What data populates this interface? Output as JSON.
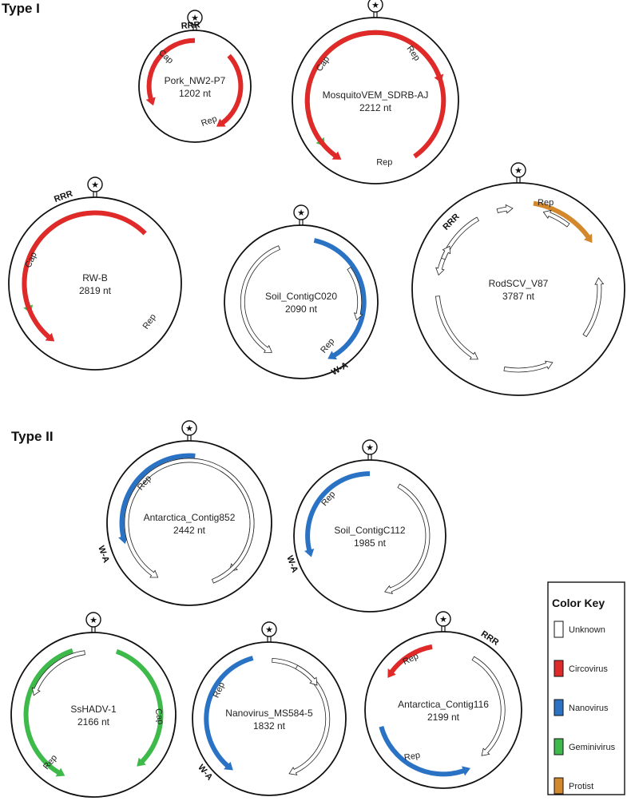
{
  "colors": {
    "Unknown": "#ffffff",
    "Circovirus": "#e02a2a",
    "Nanovirus": "#2a73c4",
    "Geminivirus": "#3dba4a",
    "Protist": "#d4882c"
  },
  "sections": [
    {
      "title": "Type I"
    },
    {
      "title": "Type II"
    }
  ],
  "genomes": [
    {
      "name": "Pork_NW2-P7",
      "length": "1202 nt",
      "arrows": [
        {
          "cls": "Circovirus",
          "a0": 0,
          "a1": -115
        },
        {
          "cls": "Circovirus",
          "a0": 48,
          "a1": 152
        }
      ],
      "labels": [
        {
          "text": "Cap",
          "angle": -48,
          "r": 0.74,
          "rot": 42
        },
        {
          "text": "Rep",
          "angle": 158,
          "r": 0.72,
          "rot": -20
        }
      ],
      "motifs": [
        {
          "text": "RRR",
          "angle": -4,
          "r": 1.1
        }
      ]
    },
    {
      "name": "MosquitoVEM_SDRB-AJ",
      "length": "2212 nt",
      "arrows": [
        {
          "cls": "Geminivirus",
          "a0": 55,
          "a1": -132
        },
        {
          "cls": "Circovirus",
          "a0": 12,
          "a1": 75
        },
        {
          "cls": "Circovirus",
          "a0": 145,
          "a1": -150
        }
      ],
      "labels": [
        {
          "text": "Cap",
          "angle": -55,
          "r": 0.74,
          "rot": -55
        },
        {
          "text": "Rep",
          "angle": 38,
          "r": 0.7,
          "rot": 55
        },
        {
          "text": "Rep",
          "angle": 172,
          "r": 0.78,
          "rot": 0
        }
      ],
      "motifs": []
    },
    {
      "name": "RW-B",
      "length": "2819 nt",
      "arrows": [
        {
          "cls": "Geminivirus",
          "a0": -8,
          "a1": -115
        },
        {
          "cls": "Circovirus",
          "a0": 45,
          "a1": -145
        }
      ],
      "labels": [
        {
          "text": "Cap",
          "angle": -70,
          "r": 0.76,
          "rot": -65
        },
        {
          "text": "Rep",
          "angle": 125,
          "r": 0.8,
          "rot": -55
        }
      ],
      "motifs": [
        {
          "text": "RRR",
          "angle": -20,
          "r": 1.08
        }
      ]
    },
    {
      "name": "Soil_ContigC020",
      "length": "2090 nt",
      "arrows": [
        {
          "cls": "Nanovirus",
          "a0": 12,
          "a1": 155
        },
        {
          "cls": "Unknown",
          "a0": -22,
          "a1": -150
        },
        {
          "cls": "Unknown",
          "a0": 55,
          "a1": 108
        }
      ],
      "labels": [
        {
          "text": "Rep",
          "angle": 148,
          "r": 0.7,
          "rot": -50
        }
      ],
      "motifs": [
        {
          "text": "W-A",
          "angle": 150,
          "r": 1.0
        }
      ]
    },
    {
      "name": "RodSCV_V87",
      "length": "3787 nt",
      "arrows": [
        {
          "cls": "Protist",
          "a0": 10,
          "a1": 58
        },
        {
          "cls": "Unknown",
          "a0": -30,
          "a1": -80
        },
        {
          "cls": "Unknown",
          "a0": -15,
          "a1": -4
        },
        {
          "cls": "Unknown",
          "a0": 38,
          "a1": 18
        },
        {
          "cls": "Unknown",
          "a0": -68,
          "a1": -58
        },
        {
          "cls": "Unknown",
          "a0": -95,
          "a1": -150
        },
        {
          "cls": "Unknown",
          "a0": 125,
          "a1": 82
        },
        {
          "cls": "Unknown",
          "a0": -170,
          "a1": -205
        }
      ],
      "labels": [
        {
          "text": "Rep",
          "angle": 18,
          "r": 0.83,
          "rot": 0
        }
      ],
      "motifs": [
        {
          "text": "RRR",
          "angle": -45,
          "r": 0.9
        }
      ]
    },
    {
      "name": "Antarctica_Contig852",
      "length": "2442 nt",
      "arrows": [
        {
          "cls": "Nanovirus",
          "a0": 5,
          "a1": -108
        },
        {
          "cls": "Unknown",
          "a0": 30,
          "a1": 140
        },
        {
          "cls": "Unknown",
          "a0": 158,
          "a1": -150
        }
      ],
      "labels": [
        {
          "text": "Rep",
          "angle": -48,
          "r": 0.7,
          "rot": -50
        }
      ],
      "motifs": [
        {
          "text": "W-A",
          "angle": -110,
          "r": 1.1
        }
      ]
    },
    {
      "name": "Soil_ContigC112",
      "length": "1985 nt",
      "arrows": [
        {
          "cls": "Nanovirus",
          "a0": 0,
          "a1": -110
        },
        {
          "cls": "Unknown",
          "a0": 30,
          "a1": 165
        }
      ],
      "labels": [
        {
          "text": "Rep",
          "angle": -48,
          "r": 0.7,
          "rot": -50
        }
      ],
      "motifs": [
        {
          "text": "W-A",
          "angle": -110,
          "r": 1.08
        }
      ]
    },
    {
      "name": "SsHADV-1",
      "length": "2166 nt",
      "arrows": [
        {
          "cls": "Geminivirus",
          "a0": -18,
          "a1": -155
        },
        {
          "cls": "Geminivirus",
          "a0": 20,
          "a1": 140
        },
        {
          "cls": "Unknown",
          "a0": -8,
          "a1": -72
        }
      ],
      "labels": [
        {
          "text": "Cap",
          "angle": 92,
          "r": 0.77,
          "rot": 80
        },
        {
          "text": "Rep",
          "angle": -140,
          "r": 0.78,
          "rot": -50
        }
      ],
      "motifs": []
    },
    {
      "name": "Nanovirus_MS584-5",
      "length": "1832 nt",
      "arrows": [
        {
          "cls": "Nanovirus",
          "a0": -15,
          "a1": -145
        },
        {
          "cls": "Unknown",
          "a0": 3,
          "a1": 160
        },
        {
          "cls": "Unknown",
          "a0": 28,
          "a1": 55
        }
      ],
      "labels": [
        {
          "text": "Rep",
          "angle": -60,
          "r": 0.72,
          "rot": -65
        }
      ],
      "motifs": [
        {
          "text": "W-A",
          "angle": -130,
          "r": 1.08
        }
      ]
    },
    {
      "name": "Antarctica_Contig116",
      "length": "2199 nt",
      "arrows": [
        {
          "cls": "Circovirus",
          "a0": -10,
          "a1": -60
        },
        {
          "cls": "Nanovirus",
          "a0": -105,
          "a1": -205
        },
        {
          "cls": "Unknown",
          "a0": 30,
          "a1": 140
        }
      ],
      "labels": [
        {
          "text": "Rep",
          "angle": -33,
          "r": 0.74,
          "rot": -25
        },
        {
          "text": "Rep",
          "angle": -148,
          "r": 0.74,
          "rot": -10
        }
      ],
      "motifs": [
        {
          "text": "RRR",
          "angle": 33,
          "r": 1.1
        }
      ]
    }
  ],
  "key": {
    "title": "Color Key",
    "items": [
      {
        "label": "Unknown",
        "cls": "Unknown"
      },
      {
        "label": "Circovirus",
        "cls": "Circovirus"
      },
      {
        "label": "Nanovirus",
        "cls": "Nanovirus"
      },
      {
        "label": "Geminivirus",
        "cls": "Geminivirus"
      },
      {
        "label": "Protist",
        "cls": "Protist"
      }
    ]
  },
  "origin_symbol": "★"
}
